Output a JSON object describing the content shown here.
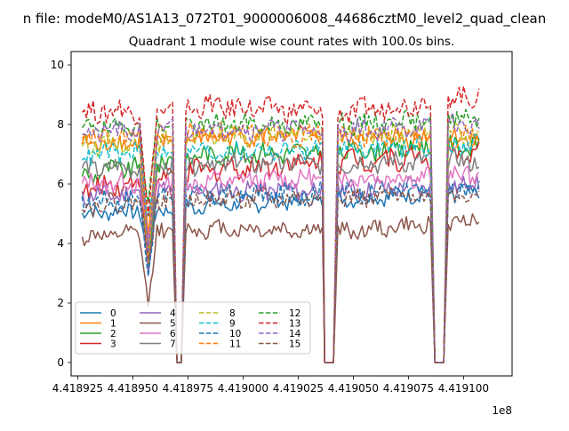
{
  "chart_data": {
    "type": "line",
    "suptitle": "n file: modeM0/AS1A13_072T01_9000006008_44686cztM0_level2_quad_clean",
    "title": "Quadrant 1 module wise count rates with 100.0s bins.",
    "xlabel": "",
    "ylabel": "",
    "x_offset_label": "1e8",
    "xlim": [
      441892200,
      441912200
    ],
    "ylim": [
      -0.45,
      10.45
    ],
    "x_ticks": [
      441892500,
      441895000,
      441897500,
      441900000,
      441902500,
      441905000,
      441907500,
      441910000
    ],
    "x_tick_labels": [
      "4.418925",
      "4.418950",
      "4.418975",
      "4.419000",
      "4.419025",
      "4.419050",
      "4.419075",
      "4.419100"
    ],
    "y_ticks": [
      0,
      2,
      4,
      6,
      8,
      10
    ],
    "y_tick_labels": [
      "0",
      "2",
      "4",
      "6",
      "8",
      "10"
    ],
    "x_start": 441892700,
    "bin_width": 100,
    "n_bins": 181,
    "segments": [
      {
        "from": 441892700,
        "to": 441895300,
        "shape": "normal"
      },
      {
        "from": 441895300,
        "to": 441896100,
        "shape": "dip",
        "dip_center": 441895700,
        "dip_fraction": 0.55
      },
      {
        "from": 441896100,
        "to": 441896800,
        "shape": "normal"
      },
      {
        "from": 441896800,
        "to": 441897000,
        "shape": "fall"
      },
      {
        "from": 441897000,
        "to": 441897200,
        "shape": "zero"
      },
      {
        "from": 441897200,
        "to": 441897400,
        "shape": "rise"
      },
      {
        "from": 441897400,
        "to": 441903600,
        "shape": "normal"
      },
      {
        "from": 441903600,
        "to": 441903700,
        "shape": "fall"
      },
      {
        "from": 441903700,
        "to": 441904100,
        "shape": "zero"
      },
      {
        "from": 441904100,
        "to": 441904300,
        "shape": "rise"
      },
      {
        "from": 441904300,
        "to": 441908500,
        "shape": "normal"
      },
      {
        "from": 441908500,
        "to": 441908700,
        "shape": "fall"
      },
      {
        "from": 441908700,
        "to": 441909100,
        "shape": "zero"
      },
      {
        "from": 441909100,
        "to": 441909300,
        "shape": "rise"
      },
      {
        "from": 441909300,
        "to": 441911200,
        "shape": "normal"
      }
    ],
    "series": [
      {
        "name": "0",
        "color": "#1f77b4",
        "dash": "solid",
        "base": 5.2,
        "amp": 0.25,
        "trend": [
          5.0,
          5.3,
          5.5,
          5.8
        ]
      },
      {
        "name": "1",
        "color": "#ff7f0e",
        "dash": "solid",
        "base": 7.5,
        "amp": 0.3,
        "trend": [
          7.3,
          7.6,
          7.6,
          7.5
        ]
      },
      {
        "name": "2",
        "color": "#2ca02c",
        "dash": "solid",
        "base": 6.9,
        "amp": 0.3,
        "trend": [
          6.3,
          7.0,
          7.1,
          7.3
        ]
      },
      {
        "name": "3",
        "color": "#d62728",
        "dash": "solid",
        "base": 6.3,
        "amp": 0.35,
        "trend": [
          5.8,
          6.5,
          6.8,
          7.0
        ]
      },
      {
        "name": "4",
        "color": "#9467bd",
        "dash": "solid",
        "base": 5.7,
        "amp": 0.3,
        "trend": [
          5.6,
          5.8,
          5.8,
          6.0
        ]
      },
      {
        "name": "5",
        "color": "#8c564b",
        "dash": "solid",
        "base": 4.3,
        "amp": 0.25,
        "trend": [
          4.2,
          4.5,
          4.4,
          4.8
        ]
      },
      {
        "name": "6",
        "color": "#e377c2",
        "dash": "solid",
        "base": 6.0,
        "amp": 0.3,
        "trend": [
          6.0,
          6.1,
          6.2,
          6.3
        ]
      },
      {
        "name": "7",
        "color": "#7f7f7f",
        "dash": "solid",
        "base": 6.6,
        "amp": 0.3,
        "trend": [
          6.5,
          6.7,
          6.7,
          6.8
        ]
      },
      {
        "name": "8",
        "color": "#bcbd22",
        "dash": "dashed",
        "base": 7.6,
        "amp": 0.3,
        "trend": [
          7.3,
          7.6,
          7.7,
          7.7
        ]
      },
      {
        "name": "9",
        "color": "#17becf",
        "dash": "dashed",
        "base": 7.1,
        "amp": 0.3,
        "trend": [
          7.0,
          7.1,
          7.2,
          7.3
        ]
      },
      {
        "name": "10",
        "color": "#1f77b4",
        "dash": "dashed",
        "base": 5.6,
        "amp": 0.3,
        "trend": [
          5.4,
          5.6,
          5.7,
          5.8
        ]
      },
      {
        "name": "11",
        "color": "#ff7f0e",
        "dash": "dashed",
        "base": 7.6,
        "amp": 0.3,
        "trend": [
          7.5,
          7.7,
          7.6,
          7.6
        ]
      },
      {
        "name": "12",
        "color": "#2ca02c",
        "dash": "dashed",
        "base": 8.0,
        "amp": 0.3,
        "trend": [
          7.9,
          8.0,
          8.0,
          8.3
        ]
      },
      {
        "name": "13",
        "color": "#d62728",
        "dash": "dashed",
        "base": 8.5,
        "amp": 0.35,
        "trend": [
          8.4,
          8.6,
          8.4,
          9.0
        ]
      },
      {
        "name": "14",
        "color": "#9467bd",
        "dash": "dashed",
        "base": 7.8,
        "amp": 0.3,
        "trend": [
          7.7,
          7.9,
          7.8,
          8.0
        ]
      },
      {
        "name": "15",
        "color": "#8c564b",
        "dash": "dashed",
        "base": 5.4,
        "amp": 0.3,
        "trend": [
          5.3,
          5.5,
          5.5,
          5.7
        ]
      }
    ],
    "grid": false,
    "legend_position": "lower-left",
    "legend_columns": 4
  }
}
